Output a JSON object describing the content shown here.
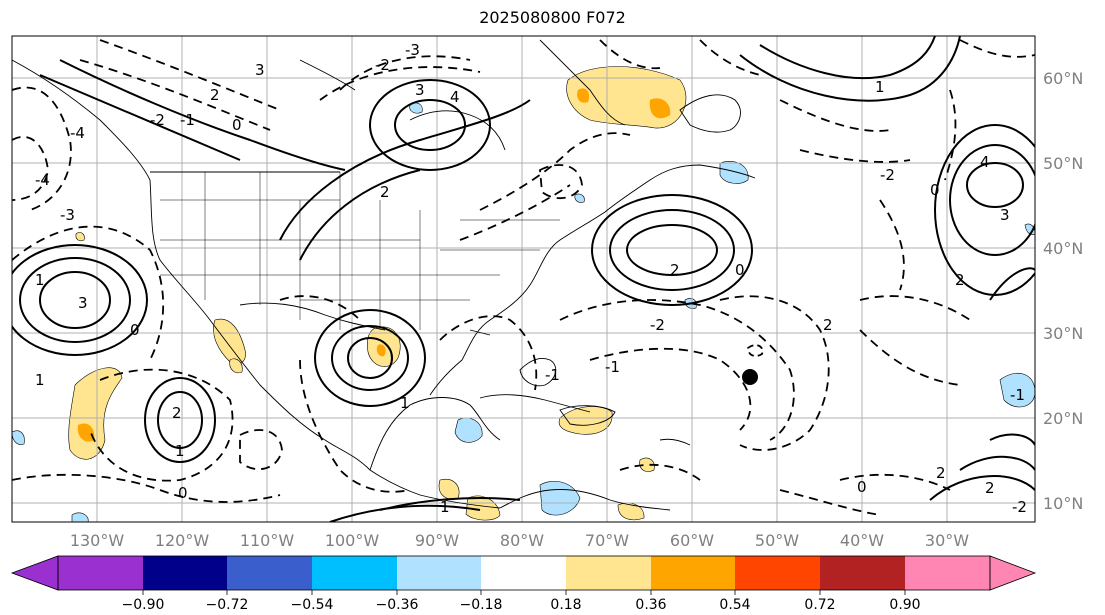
{
  "title": "2025080800 F072",
  "longitude_labels": [
    "130°W",
    "120°W",
    "110°W",
    "100°W",
    "90°W",
    "80°W",
    "70°W",
    "60°W",
    "50°W",
    "40°W",
    "30°W"
  ],
  "latitude_labels": [
    "60°N",
    "50°N",
    "40°N",
    "30°N",
    "20°N",
    "10°N"
  ],
  "colorbar": {
    "tick_labels": [
      "−0.90",
      "−0.72",
      "−0.54",
      "−0.36",
      "−0.18",
      "0.18",
      "0.36",
      "0.54",
      "0.72",
      "0.90"
    ],
    "colors": [
      "#9b30d0",
      "#00008b",
      "#3a5fcd",
      "#00bfff",
      "#b0e2ff",
      "#ffffff",
      "#ffe58f",
      "#ffa500",
      "#ff4500",
      "#b22222",
      "#ff85b3"
    ]
  },
  "contour_labels": [
    "-3",
    "-2",
    "3",
    "2",
    "-1",
    "0",
    "-2",
    "3",
    "4",
    "-4",
    "-3",
    "2",
    "1",
    "0",
    "-4",
    "4",
    "3",
    "2",
    "1",
    "0",
    "-2",
    "2",
    "3",
    "1",
    "-1",
    "0",
    "-2",
    "2",
    "1",
    "2",
    "0",
    "1",
    "-1",
    "2",
    "1",
    "0",
    "-2",
    "2",
    "-1"
  ],
  "marker": "storm-center-dot"
}
